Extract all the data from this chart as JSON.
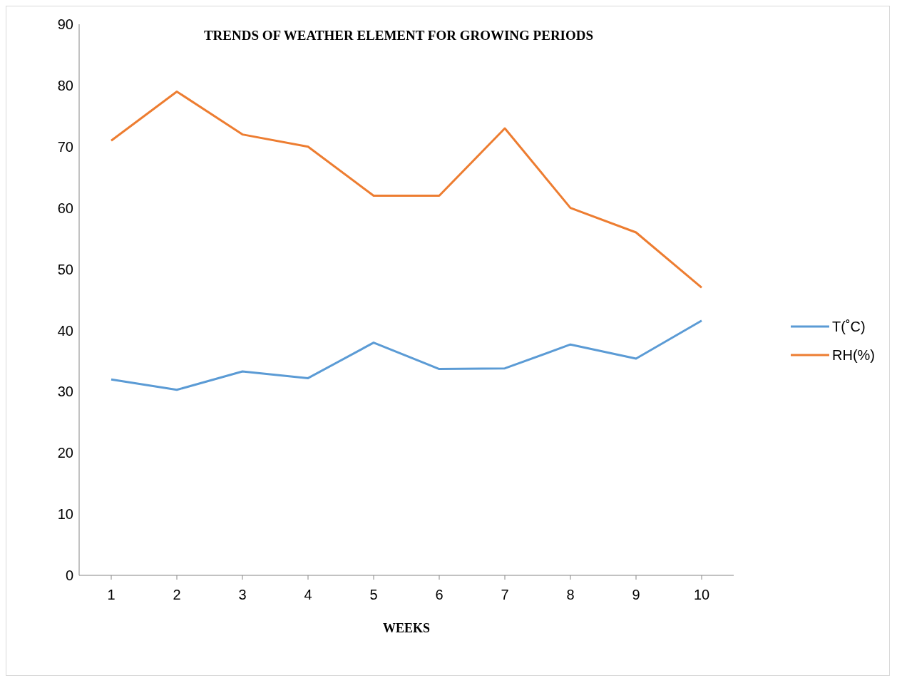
{
  "chart_data": {
    "type": "line",
    "title": "TRENDS OF WEATHER ELEMENT FOR GROWING PERIODS",
    "xlabel": "WEEKS",
    "categories": [
      "1",
      "2",
      "3",
      "4",
      "5",
      "6",
      "7",
      "8",
      "9",
      "10"
    ],
    "series": [
      {
        "name": "T(˚C)",
        "color": "#5b9bd5",
        "values": [
          32,
          30.3,
          33.3,
          32.2,
          38,
          33.7,
          33.8,
          37.7,
          35.4,
          41.6
        ]
      },
      {
        "name": "RH(%)",
        "color": "#ed7d31",
        "values": [
          71,
          79,
          72,
          70,
          62,
          62,
          73,
          60,
          56,
          47
        ]
      }
    ],
    "ylim": [
      0,
      90
    ],
    "yticks": [
      0,
      10,
      20,
      30,
      40,
      50,
      60,
      70,
      80,
      90
    ],
    "grid": false,
    "legend": "right",
    "marker": "none",
    "line_style": "solid"
  }
}
